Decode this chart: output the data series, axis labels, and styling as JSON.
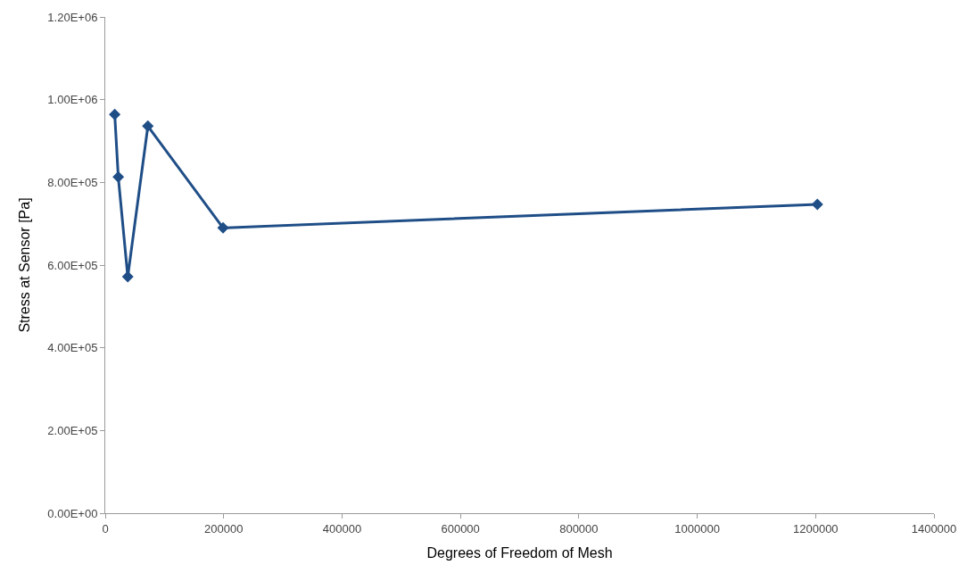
{
  "chart_data": {
    "type": "line",
    "xlabel": "Degrees of Freedom of Mesh",
    "ylabel": "Stress at Sensor [Pa]",
    "x": [
      16000,
      22000,
      38000,
      72000,
      199000,
      1203000
    ],
    "series": [
      {
        "color": "#1f4e87",
        "values": [
          964000,
          813000,
          572000,
          936000,
          690000,
          747000
        ]
      }
    ],
    "xlim": [
      0,
      1400000
    ],
    "xticks": [
      0,
      200000,
      400000,
      600000,
      800000,
      1000000,
      1200000,
      1400000
    ],
    "ylim": [
      0,
      1200000
    ],
    "yticks": [
      {
        "value": 0,
        "label": "0.00E+00"
      },
      {
        "value": 200000,
        "label": "2.00E+05"
      },
      {
        "value": 400000,
        "label": "4.00E+05"
      },
      {
        "value": 600000,
        "label": "6.00E+05"
      },
      {
        "value": 800000,
        "label": "8.00E+05"
      },
      {
        "value": 1000000,
        "label": "1.00E+06"
      },
      {
        "value": 1200000,
        "label": "1.20E+06"
      }
    ],
    "marker": "diamond",
    "line_style": "solid"
  }
}
